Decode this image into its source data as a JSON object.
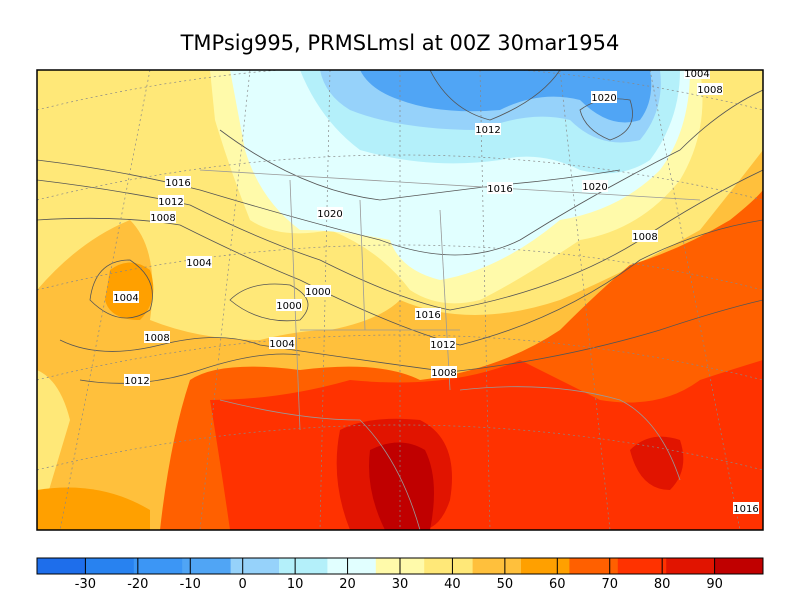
{
  "title": "TMPsig995, PRMSLmsl at 00Z  30mar1954",
  "contour_labels": [
    "1004",
    "1008",
    "1020",
    "1012",
    "1016",
    "1012",
    "1008",
    "1016",
    "1020",
    "1020",
    "1008",
    "1004",
    "1004",
    "1000",
    "1000",
    "1016",
    "1008",
    "1004",
    "1012",
    "1008",
    "1012",
    "1016"
  ],
  "colorbar": {
    "ticks": [
      -30,
      -20,
      -10,
      0,
      10,
      20,
      30,
      40,
      50,
      60,
      70,
      80,
      90
    ],
    "colors": [
      "#1e6eeb",
      "#2882f0",
      "#3c96f5",
      "#50a5f5",
      "#96d2fa",
      "#b4f0fa",
      "#e1ffff",
      "#fffaaa",
      "#ffe878",
      "#ffc03c",
      "#ffa000",
      "#ff6000",
      "#ff3200",
      "#e11400",
      "#c00000"
    ]
  }
}
